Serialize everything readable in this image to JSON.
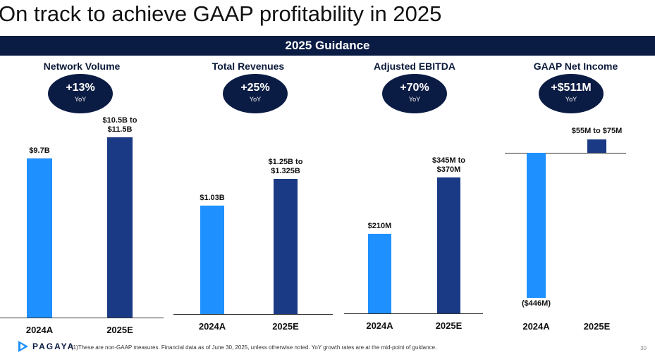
{
  "title": "On track to achieve GAAP profitability in 2025",
  "banner": "2025 Guidance",
  "chart_data": [
    {
      "type": "bar",
      "title": "Network Volume",
      "categories": [
        "2024A",
        "2025E"
      ],
      "values": [
        9.7,
        11.0
      ],
      "value_labels": [
        "$9.7B",
        "$10.5B to $11.5B"
      ],
      "units": "B USD",
      "growth": "+13%",
      "growth_sub": "YoY",
      "colors": [
        "#1e90ff",
        "#1b3a85"
      ]
    },
    {
      "type": "bar",
      "title": "Total Revenues",
      "categories": [
        "2024A",
        "2025E"
      ],
      "values": [
        1.03,
        1.2875
      ],
      "value_labels": [
        "$1.03B",
        "$1.25B to $1.325B"
      ],
      "units": "B USD",
      "growth": "+25%",
      "growth_sub": "YoY",
      "colors": [
        "#1e90ff",
        "#1b3a85"
      ]
    },
    {
      "type": "bar",
      "title": "Adjusted EBITDA",
      "categories": [
        "2024A",
        "2025E"
      ],
      "values": [
        210,
        357.5
      ],
      "value_labels": [
        "$210M",
        "$345M to $370M"
      ],
      "units": "M USD",
      "growth": "+70%",
      "growth_sub": "YoY",
      "colors": [
        "#1e90ff",
        "#1b3a85"
      ]
    },
    {
      "type": "bar",
      "title": "GAAP Net Income",
      "categories": [
        "2024A",
        "2025E"
      ],
      "values": [
        -446,
        65
      ],
      "value_labels": [
        "($446M)",
        "$55M to $75M"
      ],
      "units": "M USD",
      "growth": "+$511M",
      "growth_sub": "YoY",
      "colors": [
        "#1e90ff",
        "#1b3a85"
      ]
    }
  ],
  "footer": {
    "logo_text": "PAGAYA",
    "note": "(1)These are non-GAAP measures. Financial data as of June 30, 2025, unless otherwise noted. YoY growth rates are at the mid-point of guidance.",
    "page_number": "30"
  }
}
